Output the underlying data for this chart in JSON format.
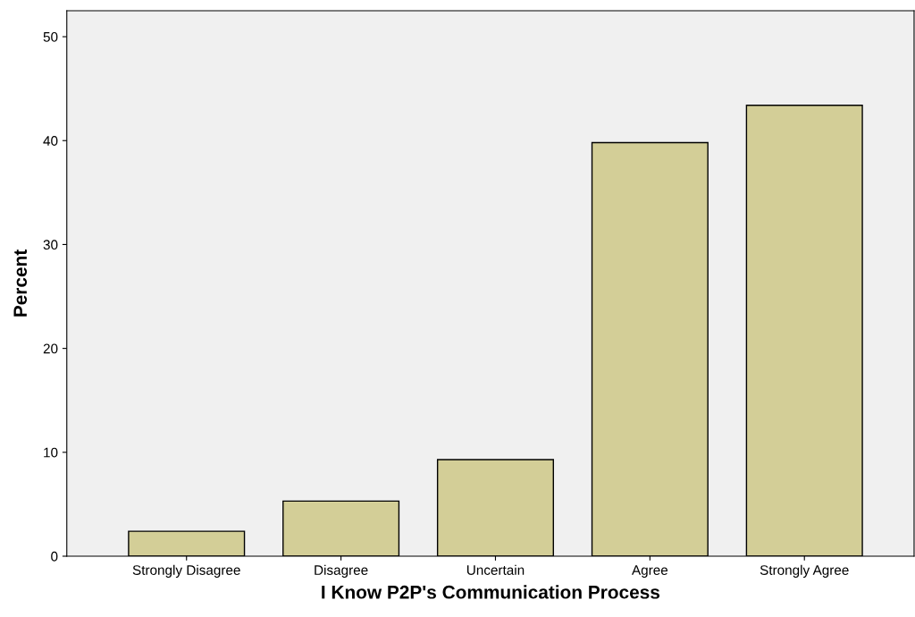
{
  "chart_data": {
    "type": "bar",
    "xlabel": "I Know P2P's Communication Process",
    "ylabel": "Percent",
    "categories": [
      "Strongly Disagree",
      "Disagree",
      "Uncertain",
      "Agree",
      "Strongly Agree"
    ],
    "values": [
      2.4,
      5.3,
      9.3,
      39.8,
      43.4
    ],
    "color": "#d3ce97",
    "ylim": [
      0,
      52.5
    ],
    "yticks": [
      0,
      10,
      20,
      30,
      40,
      50
    ],
    "grid": false,
    "legend": false
  }
}
